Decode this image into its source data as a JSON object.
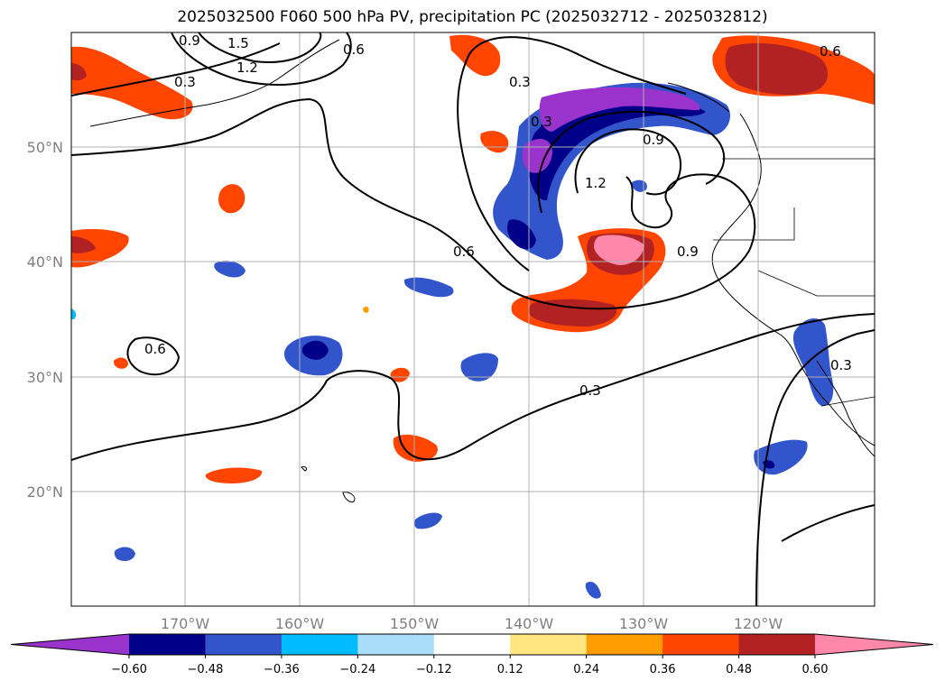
{
  "title": "2025032500 F060 500 hPa PV, precipitation PC (2025032712 - 2025032812)",
  "map": {
    "lat_labels": [
      "50°N",
      "40°N",
      "30°N",
      "20°N"
    ],
    "lon_labels": [
      "170°W",
      "160°W",
      "150°W",
      "140°W",
      "130°W",
      "120°W"
    ],
    "gridlines": true
  },
  "contour_labels": [
    "1.5",
    "1.2",
    "0.3",
    "0.6",
    "0.3",
    "0.3",
    "0.9",
    "1.2",
    "0.6",
    "0.9",
    "0.6",
    "0.3",
    "0.3",
    "0.6",
    "0.9"
  ],
  "colorbar": {
    "tick_labels": [
      "−0.60",
      "−0.48",
      "−0.36",
      "−0.24",
      "−0.12",
      "0.12",
      "0.24",
      "0.36",
      "0.48",
      "0.60"
    ],
    "colors": [
      "#9933cc",
      "#000088",
      "#3355cc",
      "#00bbff",
      "#aaddf8",
      "#ffffff",
      "#ffe680",
      "#ff9d00",
      "#ff4500",
      "#b22222",
      "#ff88aa"
    ],
    "extend": "both"
  }
}
